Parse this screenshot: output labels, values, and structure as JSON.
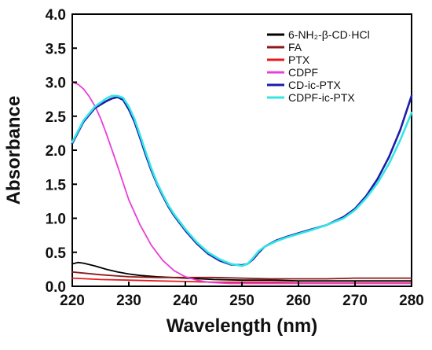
{
  "chart_data": {
    "type": "line",
    "xlabel": "Wavelength (nm)",
    "ylabel": "Absorbance",
    "xlim": [
      220,
      280
    ],
    "ylim": [
      0.0,
      4.0
    ],
    "xticks": [
      "220",
      "230",
      "240",
      "250",
      "260",
      "270",
      "280"
    ],
    "yticks": [
      "0.0",
      "0.5",
      "1.0",
      "1.5",
      "2.0",
      "2.5",
      "3.0",
      "3.5",
      "4.0"
    ],
    "grid": false,
    "legend_position": "top-right",
    "series": [
      {
        "name": "6-NH₂-β-CD·HCl",
        "color": "#000000",
        "x": [
          220,
          221,
          222,
          224,
          226,
          228,
          230,
          232,
          235,
          240,
          245,
          250,
          255,
          260,
          265,
          270,
          275,
          280
        ],
        "y": [
          0.33,
          0.35,
          0.34,
          0.3,
          0.25,
          0.21,
          0.18,
          0.16,
          0.14,
          0.12,
          0.1,
          0.09,
          0.09,
          0.08,
          0.08,
          0.08,
          0.08,
          0.08
        ]
      },
      {
        "name": "FA",
        "color": "#8b1a1a",
        "x": [
          220,
          225,
          230,
          235,
          240,
          245,
          250,
          255,
          260,
          265,
          270,
          275,
          280
        ],
        "y": [
          0.21,
          0.17,
          0.14,
          0.13,
          0.13,
          0.13,
          0.12,
          0.11,
          0.11,
          0.11,
          0.12,
          0.12,
          0.12
        ]
      },
      {
        "name": "PTX",
        "color": "#e8191b",
        "x": [
          220,
          225,
          230,
          235,
          240,
          245,
          250,
          255,
          260,
          265,
          270,
          275,
          280
        ],
        "y": [
          0.12,
          0.1,
          0.09,
          0.08,
          0.07,
          0.06,
          0.06,
          0.06,
          0.05,
          0.05,
          0.05,
          0.05,
          0.05
        ]
      },
      {
        "name": "CDPF",
        "color": "#e83fd8",
        "x": [
          220,
          221,
          222,
          223,
          224,
          225,
          226,
          227,
          228,
          229,
          230,
          232,
          234,
          236,
          238,
          240,
          242,
          244,
          246,
          248,
          250,
          255,
          260,
          270,
          280
        ],
        "y": [
          3.0,
          2.97,
          2.9,
          2.79,
          2.65,
          2.47,
          2.25,
          2.01,
          1.77,
          1.52,
          1.27,
          0.9,
          0.6,
          0.38,
          0.23,
          0.14,
          0.09,
          0.06,
          0.05,
          0.04,
          0.04,
          0.04,
          0.04,
          0.04,
          0.04
        ]
      },
      {
        "name": "CD-ic-PTX",
        "color": "#1c1ca8",
        "x": [
          220,
          222,
          224,
          226,
          227,
          228,
          229,
          230,
          231,
          232,
          233,
          234,
          235,
          236,
          237,
          238,
          239,
          240,
          242,
          244,
          246,
          248,
          250,
          251,
          252,
          253,
          254,
          256,
          258,
          260,
          262,
          265,
          268,
          270,
          272,
          274,
          276,
          278,
          280
        ],
        "y": [
          2.1,
          2.42,
          2.62,
          2.72,
          2.76,
          2.78,
          2.74,
          2.6,
          2.42,
          2.18,
          1.93,
          1.7,
          1.5,
          1.33,
          1.17,
          1.04,
          0.93,
          0.82,
          0.63,
          0.48,
          0.38,
          0.32,
          0.31,
          0.33,
          0.4,
          0.5,
          0.58,
          0.67,
          0.73,
          0.78,
          0.83,
          0.9,
          1.02,
          1.14,
          1.33,
          1.58,
          1.9,
          2.3,
          2.8
        ]
      },
      {
        "name": "CDPF-ic-PTX",
        "color": "#33e6e6",
        "x": [
          220,
          222,
          224,
          226,
          227,
          228,
          229,
          230,
          231,
          232,
          233,
          234,
          235,
          236,
          237,
          238,
          239,
          240,
          242,
          244,
          246,
          248,
          250,
          251,
          252,
          253,
          254,
          256,
          258,
          260,
          262,
          265,
          268,
          270,
          272,
          274,
          276,
          278,
          280
        ],
        "y": [
          2.12,
          2.44,
          2.64,
          2.76,
          2.8,
          2.8,
          2.77,
          2.64,
          2.46,
          2.22,
          1.97,
          1.73,
          1.52,
          1.35,
          1.19,
          1.06,
          0.95,
          0.84,
          0.65,
          0.5,
          0.4,
          0.33,
          0.3,
          0.33,
          0.42,
          0.52,
          0.58,
          0.66,
          0.72,
          0.77,
          0.82,
          0.9,
          1.0,
          1.12,
          1.3,
          1.52,
          1.8,
          2.15,
          2.55
        ]
      }
    ]
  }
}
